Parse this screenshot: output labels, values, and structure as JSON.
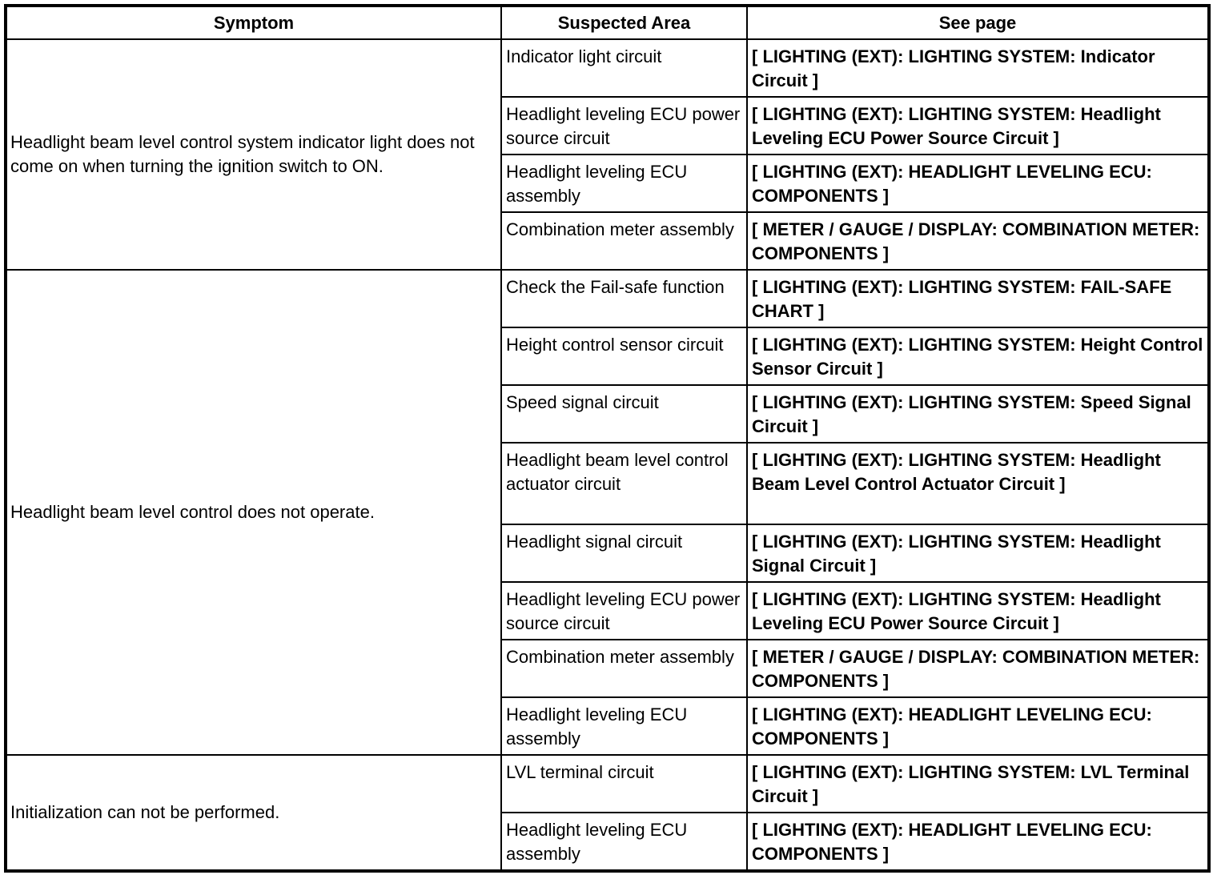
{
  "headers": [
    "Symptom",
    "Suspected Area",
    "See page"
  ],
  "groups": [
    {
      "symptom": "Headlight beam level control system indicator light does not come on when turning the ignition switch to ON.",
      "rows": [
        {
          "area": "Indicator light circuit",
          "page": "[ LIGHTING (EXT): LIGHTING SYSTEM: Indicator Circuit ]"
        },
        {
          "area": "Headlight leveling ECU power source circuit",
          "page": "[ LIGHTING (EXT): LIGHTING SYSTEM: Headlight Leveling ECU Power Source Circuit ]"
        },
        {
          "area": "Headlight leveling ECU assembly",
          "page": "[ LIGHTING (EXT): HEADLIGHT LEVELING ECU: COMPONENTS ]"
        },
        {
          "area": "Combination meter assembly",
          "page": "[ METER / GAUGE / DISPLAY: COMBINATION METER: COMPONENTS ]"
        }
      ]
    },
    {
      "symptom": "Headlight beam level control does not operate.",
      "rows": [
        {
          "area": "Check the Fail-safe function",
          "page": "[ LIGHTING (EXT): LIGHTING SYSTEM: FAIL-SAFE CHART ]"
        },
        {
          "area": "Height control sensor circuit",
          "page": "[ LIGHTING (EXT): LIGHTING SYSTEM: Height Control Sensor Circuit ]"
        },
        {
          "area": "Speed signal circuit",
          "page": "[ LIGHTING (EXT): LIGHTING SYSTEM: Speed Signal Circuit ]"
        },
        {
          "area": "Headlight beam level control actuator circuit",
          "page": "[ LIGHTING (EXT): LIGHTING SYSTEM: Headlight Beam Level Control Actuator Circuit ]"
        },
        {
          "area": "Headlight signal circuit",
          "page": "[ LIGHTING (EXT): LIGHTING SYSTEM: Headlight Signal Circuit ]"
        },
        {
          "area": "Headlight leveling ECU power source circuit",
          "page": "[ LIGHTING (EXT): LIGHTING SYSTEM: Headlight Leveling ECU Power Source Circuit ]"
        },
        {
          "area": "Combination meter assembly",
          "page": "[ METER / GAUGE / DISPLAY: COMBINATION METER: COMPONENTS ]"
        },
        {
          "area": "Headlight leveling ECU assembly",
          "page": "[ LIGHTING (EXT): HEADLIGHT LEVELING ECU: COMPONENTS ]"
        }
      ]
    },
    {
      "symptom": "Initialization can not be performed.",
      "rows": [
        {
          "area": "LVL terminal circuit",
          "page": "[ LIGHTING (EXT): LIGHTING SYSTEM: LVL Terminal Circuit ]"
        },
        {
          "area": "Headlight leveling ECU assembly",
          "page": "[ LIGHTING (EXT): HEADLIGHT LEVELING ECU: COMPONENTS ]"
        }
      ]
    }
  ]
}
